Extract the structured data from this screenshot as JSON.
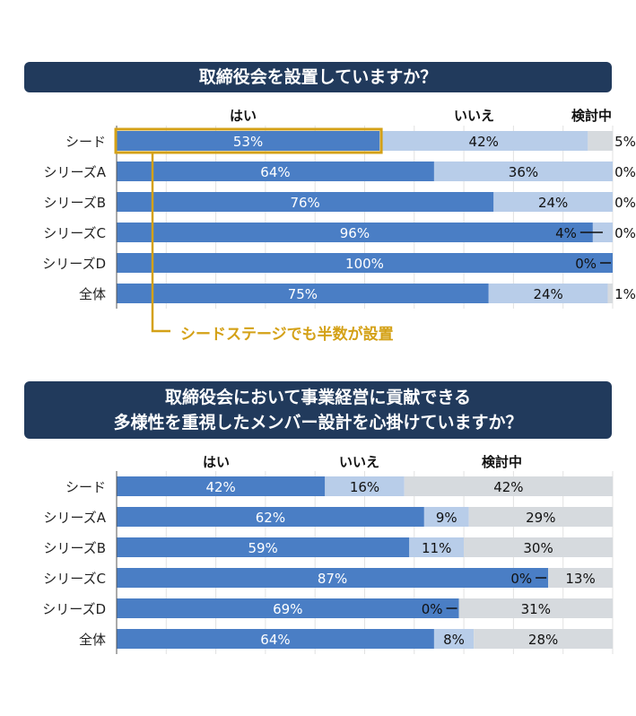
{
  "header1": {
    "title": "取締役会を設置していますか？"
  },
  "header2": {
    "line1": "取締役会において事業経営に貢献できる",
    "line2": "多様性を重視したメンバー設計を心掛けていますか？"
  },
  "callout": {
    "text": "シードステージでも半数が設置"
  },
  "colors": {
    "yes": "#4a7ec5",
    "no": "#b8cde9",
    "considering": "#d6dade",
    "highlight": "#d4a117",
    "header_bg": "#213a5c"
  },
  "chart_data": [
    {
      "type": "bar",
      "orientation": "horizontal",
      "stacked": true,
      "title": "取締役会を設置していますか？",
      "categories": [
        "シード",
        "シリーズA",
        "シリーズB",
        "シリーズC",
        "シリーズD",
        "全体"
      ],
      "series": [
        {
          "name": "はい",
          "values": [
            53,
            64,
            76,
            96,
            100,
            75
          ],
          "labels": [
            "53%",
            "64%",
            "76%",
            "96%",
            "100%",
            "75%"
          ]
        },
        {
          "name": "いいえ",
          "values": [
            42,
            36,
            24,
            4,
            0,
            24
          ],
          "labels": [
            "42%",
            "36%",
            "24%",
            "4%",
            "0%",
            "24%"
          ]
        },
        {
          "name": "検討中",
          "values": [
            5,
            0,
            0,
            0,
            0,
            1
          ],
          "labels": [
            "5%",
            "0%",
            "0%",
            "0%",
            "",
            "1%"
          ]
        }
      ],
      "highlight": {
        "category": "シード",
        "series": "はい"
      },
      "xlim": [
        0,
        100
      ],
      "grid": true
    },
    {
      "type": "bar",
      "orientation": "horizontal",
      "stacked": true,
      "title": "取締役会において事業経営に貢献できる多様性を重視したメンバー設計を心掛けていますか？",
      "categories": [
        "シード",
        "シリーズA",
        "シリーズB",
        "シリーズC",
        "シリーズD",
        "全体"
      ],
      "series": [
        {
          "name": "はい",
          "values": [
            42,
            62,
            59,
            87,
            69,
            64
          ],
          "labels": [
            "42%",
            "62%",
            "59%",
            "87%",
            "69%",
            "64%"
          ]
        },
        {
          "name": "いいえ",
          "values": [
            16,
            9,
            11,
            0,
            0,
            8
          ],
          "labels": [
            "16%",
            "9%",
            "11%",
            "0%",
            "0%",
            "8%"
          ]
        },
        {
          "name": "検討中",
          "values": [
            42,
            29,
            30,
            13,
            31,
            28
          ],
          "labels": [
            "42%",
            "29%",
            "30%",
            "13%",
            "31%",
            "28%"
          ]
        }
      ],
      "xlim": [
        0,
        100
      ],
      "grid": true
    }
  ]
}
